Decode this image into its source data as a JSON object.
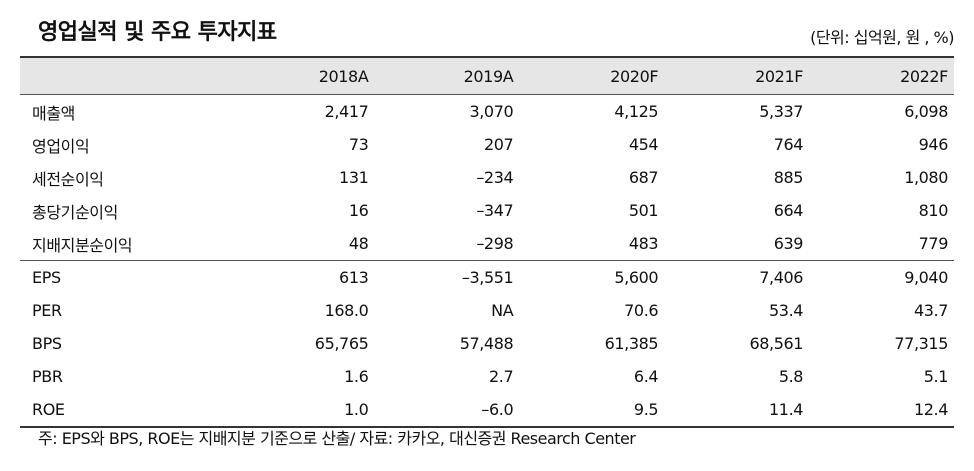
{
  "title": "영업실적 및 주요 투자지표",
  "unit": "(단위: 십억원, 원 , %)",
  "columns": [
    "2018A",
    "2019A",
    "2020F",
    "2021F",
    "2022F"
  ],
  "rows": [
    {
      "label": "매출액",
      "values": [
        "2,417",
        "3,070",
        "4,125",
        "5,337",
        "6,098"
      ]
    },
    {
      "label": "영업이익",
      "values": [
        "73",
        "207",
        "454",
        "764",
        "946"
      ]
    },
    {
      "label": "세전순이익",
      "values": [
        "131",
        "–234",
        "687",
        "885",
        "1,080"
      ]
    },
    {
      "label": "총당기순이익",
      "values": [
        "16",
        "–347",
        "501",
        "664",
        "810"
      ]
    },
    {
      "label": "지배지분순이익",
      "values": [
        "48",
        "–298",
        "483",
        "639",
        "779"
      ]
    },
    {
      "label": "EPS",
      "values": [
        "613",
        "–3,551",
        "5,600",
        "7,406",
        "9,040"
      ]
    },
    {
      "label": "PER",
      "values": [
        "168.0",
        "NA",
        "70.6",
        "53.4",
        "43.7"
      ]
    },
    {
      "label": "BPS",
      "values": [
        "65,765",
        "57,488",
        "61,385",
        "68,561",
        "77,315"
      ]
    },
    {
      "label": "PBR",
      "values": [
        "1.6",
        "2.7",
        "6.4",
        "5.8",
        "5.1"
      ]
    },
    {
      "label": "ROE",
      "values": [
        "1.0",
        "–6.0",
        "9.5",
        "11.4",
        "12.4"
      ]
    }
  ],
  "note": "주: EPS와 BPS, ROE는 지배지분 기준으로 산출/ 자료: 카카오, 대신증권 Research Center"
}
